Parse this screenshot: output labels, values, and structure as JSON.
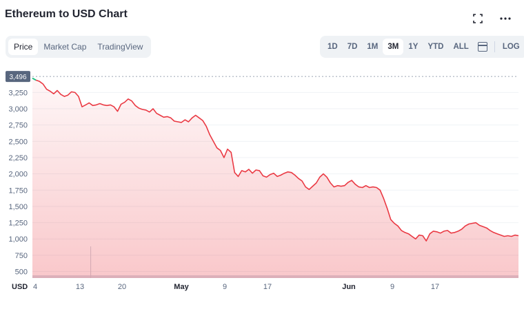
{
  "header": {
    "title": "Ethereum to USD Chart"
  },
  "toolbar": {
    "left_tabs": [
      {
        "label": "Price",
        "active": true
      },
      {
        "label": "Market Cap",
        "active": false
      },
      {
        "label": "TradingView",
        "active": false
      }
    ],
    "ranges": [
      {
        "label": "1D",
        "active": false
      },
      {
        "label": "7D",
        "active": false
      },
      {
        "label": "1M",
        "active": false
      },
      {
        "label": "3M",
        "active": true
      },
      {
        "label": "1Y",
        "active": false
      },
      {
        "label": "YTD",
        "active": false
      },
      {
        "label": "ALL",
        "active": false
      }
    ],
    "log_label": "LOG",
    "icons": [
      "fullscreen-icon",
      "more-icon",
      "calendar-icon"
    ]
  },
  "colors": {
    "down": "#ea3943",
    "up": "#16c784",
    "grid": "#eff2f5",
    "axis_text": "#58667e"
  },
  "chart_data": {
    "type": "area",
    "currency_label": "USD",
    "current_price_tag": "3,496",
    "y_ticks": [
      "3,250",
      "3,000",
      "2,750",
      "2,500",
      "2,250",
      "2,000",
      "1,750",
      "1,500",
      "1,250",
      "1,000",
      "750",
      "500"
    ],
    "ylim": [
      400,
      3550
    ],
    "x_ticks": [
      {
        "label": "4",
        "bold": false
      },
      {
        "label": "13",
        "bold": false
      },
      {
        "label": "20",
        "bold": false
      },
      {
        "label": "May",
        "bold": true
      },
      {
        "label": "9",
        "bold": false
      },
      {
        "label": "17",
        "bold": false
      },
      {
        "label": "Jun",
        "bold": true
      },
      {
        "label": "9",
        "bold": false
      },
      {
        "label": "17",
        "bold": false
      }
    ],
    "series": [
      {
        "values": [
          3470,
          3440,
          3420,
          3380,
          3300,
          3270,
          3230,
          3280,
          3220,
          3190,
          3210,
          3260,
          3250,
          3190,
          3030,
          3060,
          3090,
          3050,
          3060,
          3080,
          3060,
          3050,
          3060,
          3030,
          2960,
          3070,
          3100,
          3150,
          3120,
          3050,
          3010,
          2990,
          2980,
          2950,
          3000,
          2930,
          2900,
          2870,
          2880,
          2860,
          2810,
          2800,
          2790,
          2830,
          2800,
          2860,
          2900,
          2860,
          2820,
          2730,
          2600,
          2500,
          2400,
          2360,
          2250,
          2380,
          2330,
          2020,
          1960,
          2050,
          2030,
          2070,
          2010,
          2060,
          2050,
          1970,
          1950,
          1990,
          2010,
          1960,
          1980,
          2010,
          2030,
          2020,
          1980,
          1930,
          1890,
          1800,
          1760,
          1810,
          1860,
          1950,
          2000,
          1950,
          1860,
          1800,
          1820,
          1810,
          1820,
          1870,
          1900,
          1840,
          1800,
          1790,
          1820,
          1790,
          1800,
          1790,
          1750,
          1620,
          1470,
          1300,
          1240,
          1200,
          1130,
          1100,
          1080,
          1040,
          1000,
          1060,
          1050,
          970,
          1080,
          1120,
          1110,
          1090,
          1120,
          1130,
          1090,
          1100,
          1120,
          1150,
          1200,
          1230,
          1240,
          1250,
          1210,
          1190,
          1170,
          1130,
          1100,
          1080,
          1060,
          1040,
          1050,
          1040,
          1060,
          1050
        ]
      }
    ],
    "volume_spike_fraction": 0.12,
    "grid": true,
    "log_scale": false
  }
}
